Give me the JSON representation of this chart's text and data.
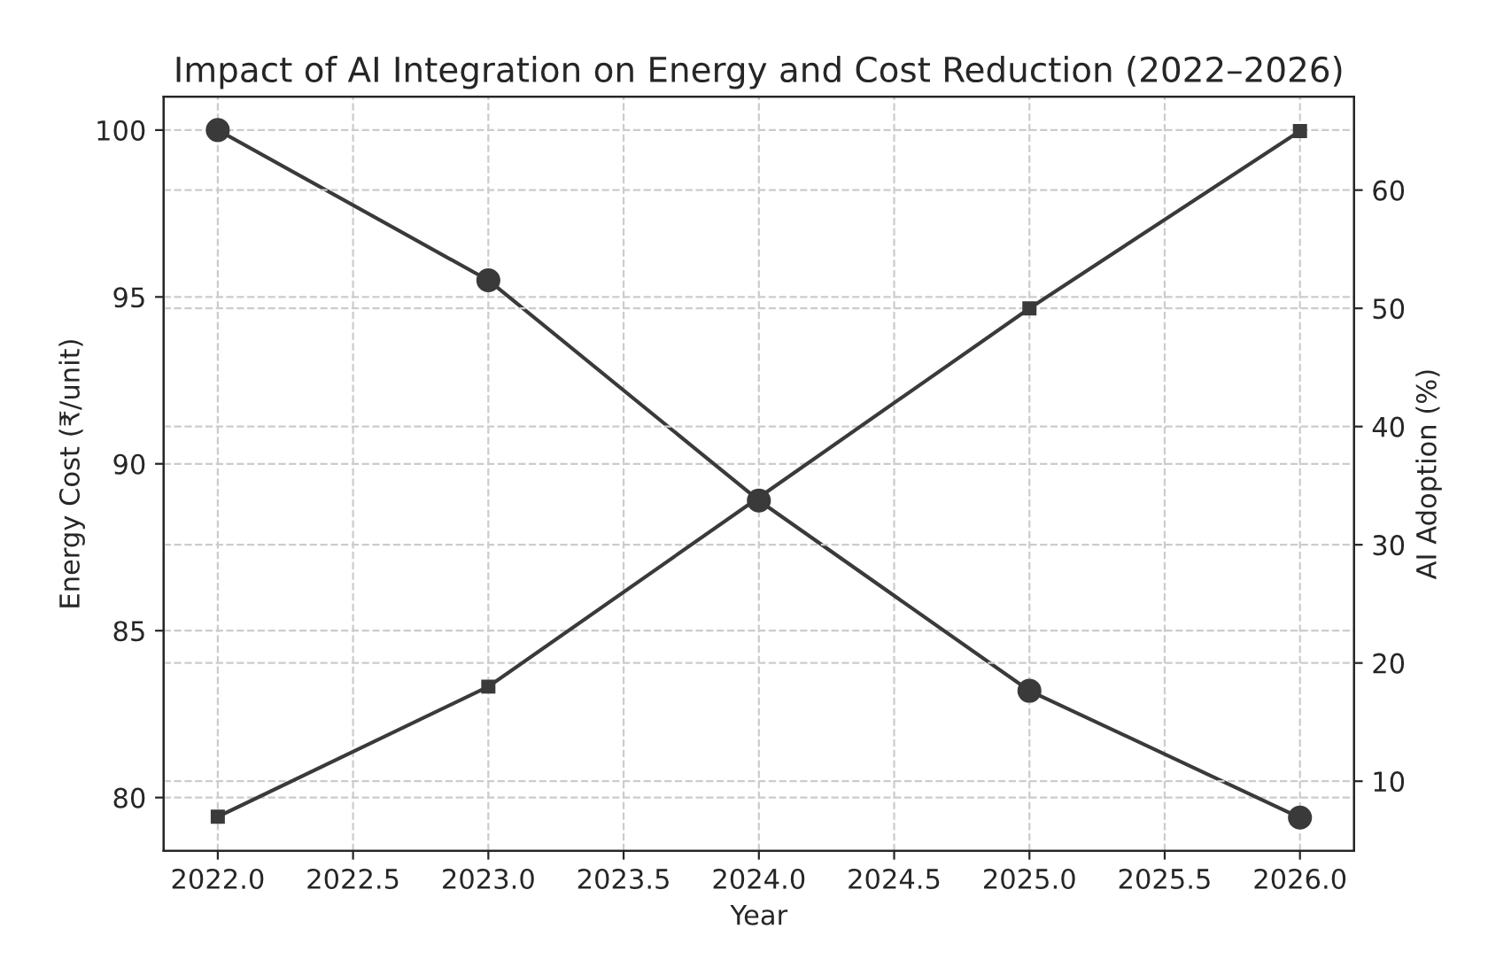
{
  "chart_data": {
    "type": "line",
    "title": "Impact of AI Integration on Energy and Cost Reduction (2022–2026)",
    "xlabel": "Year",
    "ylabel": "Energy Cost (₹/unit)",
    "y2label": "AI Adoption (%)",
    "x": [
      2022,
      2023,
      2024,
      2025,
      2026
    ],
    "series": [
      {
        "color": "#3a3a3a",
        "marker": "circle",
        "values": [
          100,
          95.5,
          88.9,
          83.2,
          79.4
        ]
      },
      {
        "color": "#3a3a3a",
        "marker": "square",
        "axis": "y2",
        "values": [
          7,
          18,
          34,
          50,
          65
        ]
      }
    ],
    "xlim": [
      2021.8,
      2026.2
    ],
    "xticks": [
      {
        "value": 2022,
        "label": "2022.0"
      },
      {
        "value": 2022.5,
        "label": "2022.5"
      },
      {
        "value": 2023,
        "label": "2023.0"
      },
      {
        "value": 2023.5,
        "label": "2023.5"
      },
      {
        "value": 2024,
        "label": "2024.0"
      },
      {
        "value": 2024.5,
        "label": "2024.5"
      },
      {
        "value": 2025,
        "label": "2025.0"
      },
      {
        "value": 2025.5,
        "label": "2025.5"
      },
      {
        "value": 2026,
        "label": "2026.0"
      }
    ],
    "ylim": [
      78.4,
      101.0
    ],
    "yticks": [
      80,
      85,
      90,
      95,
      100
    ],
    "y2lim": [
      4.1,
      67.9
    ],
    "y2ticks": [
      10,
      20,
      30,
      40,
      50,
      60
    ],
    "grid": true,
    "line_style": "solid"
  }
}
